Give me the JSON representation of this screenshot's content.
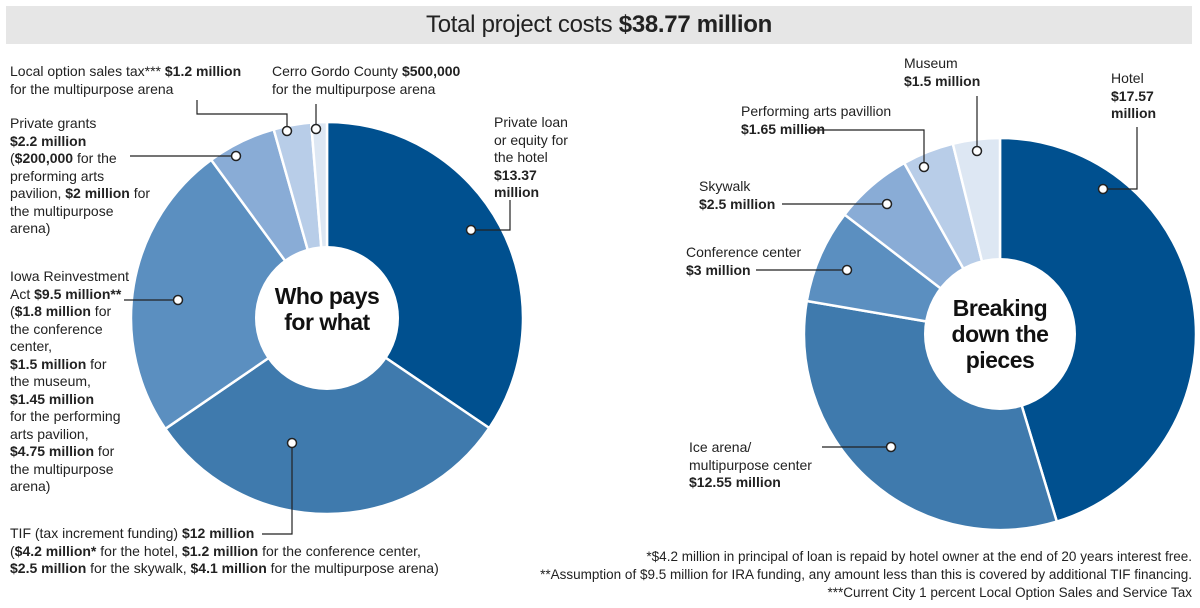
{
  "title": {
    "prefix": "Total project costs",
    "amount": "$38.77 million"
  },
  "charts": {
    "left": {
      "center_lines": [
        "Who pays",
        "for what"
      ]
    },
    "right": {
      "center_lines": [
        "Breaking",
        "down the",
        "pieces"
      ]
    }
  },
  "chart_data": [
    {
      "type": "pie",
      "title": "Who pays for what",
      "unit": "million dollars",
      "slices": [
        {
          "name": "Private loan or equity for the hotel",
          "value": 13.37,
          "color": "#00508f"
        },
        {
          "name": "TIF (tax increment funding)",
          "value": 12,
          "color": "#3f7aad"
        },
        {
          "name": "Iowa Reinvestment Act",
          "value": 9.5,
          "color": "#5b8fc0"
        },
        {
          "name": "Private grants",
          "value": 2.2,
          "color": "#89acd6"
        },
        {
          "name": "Local option sales tax",
          "value": 1.2,
          "color": "#b8cde8"
        },
        {
          "name": "Cerro Gordo County",
          "value": 0.5,
          "color": "#dde7f3"
        }
      ]
    },
    {
      "type": "pie",
      "title": "Breaking down the pieces",
      "unit": "million dollars",
      "slices": [
        {
          "name": "Hotel",
          "value": 17.57,
          "color": "#00508f"
        },
        {
          "name": "Ice arena/ multipurpose center",
          "value": 12.55,
          "color": "#3f7aad"
        },
        {
          "name": "Conference center",
          "value": 3,
          "color": "#5b8fc0"
        },
        {
          "name": "Skywalk",
          "value": 2.5,
          "color": "#89acd6"
        },
        {
          "name": "Performing arts pavillion",
          "value": 1.65,
          "color": "#b8cde8"
        },
        {
          "name": "Museum",
          "value": 1.5,
          "color": "#dde7f3"
        }
      ]
    }
  ],
  "left_labels": {
    "local_tax": [
      [
        "Local option sales tax*** ",
        "$1.2 million"
      ],
      [
        "for the multipurpose arena",
        ""
      ]
    ],
    "cerro": [
      [
        "Cerro Gordo County ",
        "$500,000"
      ],
      [
        "for the multipurpose arena",
        ""
      ]
    ],
    "private_loan": [
      [
        "Private loan",
        ""
      ],
      [
        "or equity for",
        ""
      ],
      [
        "the hotel",
        ""
      ],
      [
        "",
        "$13.37"
      ],
      [
        "",
        "million"
      ]
    ],
    "private_grants": [
      [
        "Private grants",
        ""
      ],
      [
        "",
        "$2.2 million"
      ],
      [
        "(",
        "$200,000",
        " for the"
      ],
      [
        "preforming arts",
        ""
      ],
      [
        "pavilion, ",
        "$2 million",
        " for"
      ],
      [
        "the multipurpose",
        ""
      ],
      [
        "arena)",
        ""
      ]
    ],
    "iowa": [
      [
        "Iowa Reinvestment",
        ""
      ],
      [
        "Act ",
        "$9.5 million**"
      ],
      [
        "(",
        "$1.8 million",
        " for"
      ],
      [
        "the conference",
        ""
      ],
      [
        "center,",
        ""
      ],
      [
        "",
        "$1.5 million",
        " for"
      ],
      [
        "the museum,",
        ""
      ],
      [
        "",
        "$1.45 million"
      ],
      [
        "for the performing",
        ""
      ],
      [
        "arts pavilion,",
        ""
      ],
      [
        "",
        "$4.75 million",
        " for"
      ],
      [
        "the multipurpose",
        ""
      ],
      [
        "arena)",
        ""
      ]
    ],
    "tif": [
      [
        "TIF (tax increment funding) ",
        "$12 million"
      ],
      [
        "(",
        "$4.2 million*",
        " for the hotel, ",
        "$1.2 million",
        " for the conference center,"
      ],
      [
        "",
        "$2.5 million",
        " for the skywalk, ",
        "$4.1 million",
        " for the multipurpose arena)"
      ]
    ]
  },
  "right_labels": {
    "museum": [
      [
        "Museum",
        ""
      ],
      [
        "",
        "$1.5 million"
      ]
    ],
    "hotel": [
      [
        "Hotel",
        ""
      ],
      [
        "",
        "$17.57"
      ],
      [
        "",
        "million"
      ]
    ],
    "pav": [
      [
        "Performing arts pavillion",
        ""
      ],
      [
        "",
        "$1.65 million"
      ]
    ],
    "skywalk": [
      [
        "Skywalk",
        ""
      ],
      [
        "",
        "$2.5 million"
      ]
    ],
    "conf": [
      [
        "Conference center",
        ""
      ],
      [
        "",
        "$3 million"
      ]
    ],
    "ice": [
      [
        "Ice arena/",
        ""
      ],
      [
        "multipurpose center",
        ""
      ],
      [
        "",
        "$12.55 million"
      ]
    ]
  },
  "footnotes": [
    "*$4.2 million in principal of loan is repaid by hotel owner at the end of 20 years interest free.",
    "**Assumption of $9.5 million for IRA funding, any amount less than this is covered by additional TIF financing.",
    "***Current City 1 percent Local Option Sales and Service Tax"
  ]
}
